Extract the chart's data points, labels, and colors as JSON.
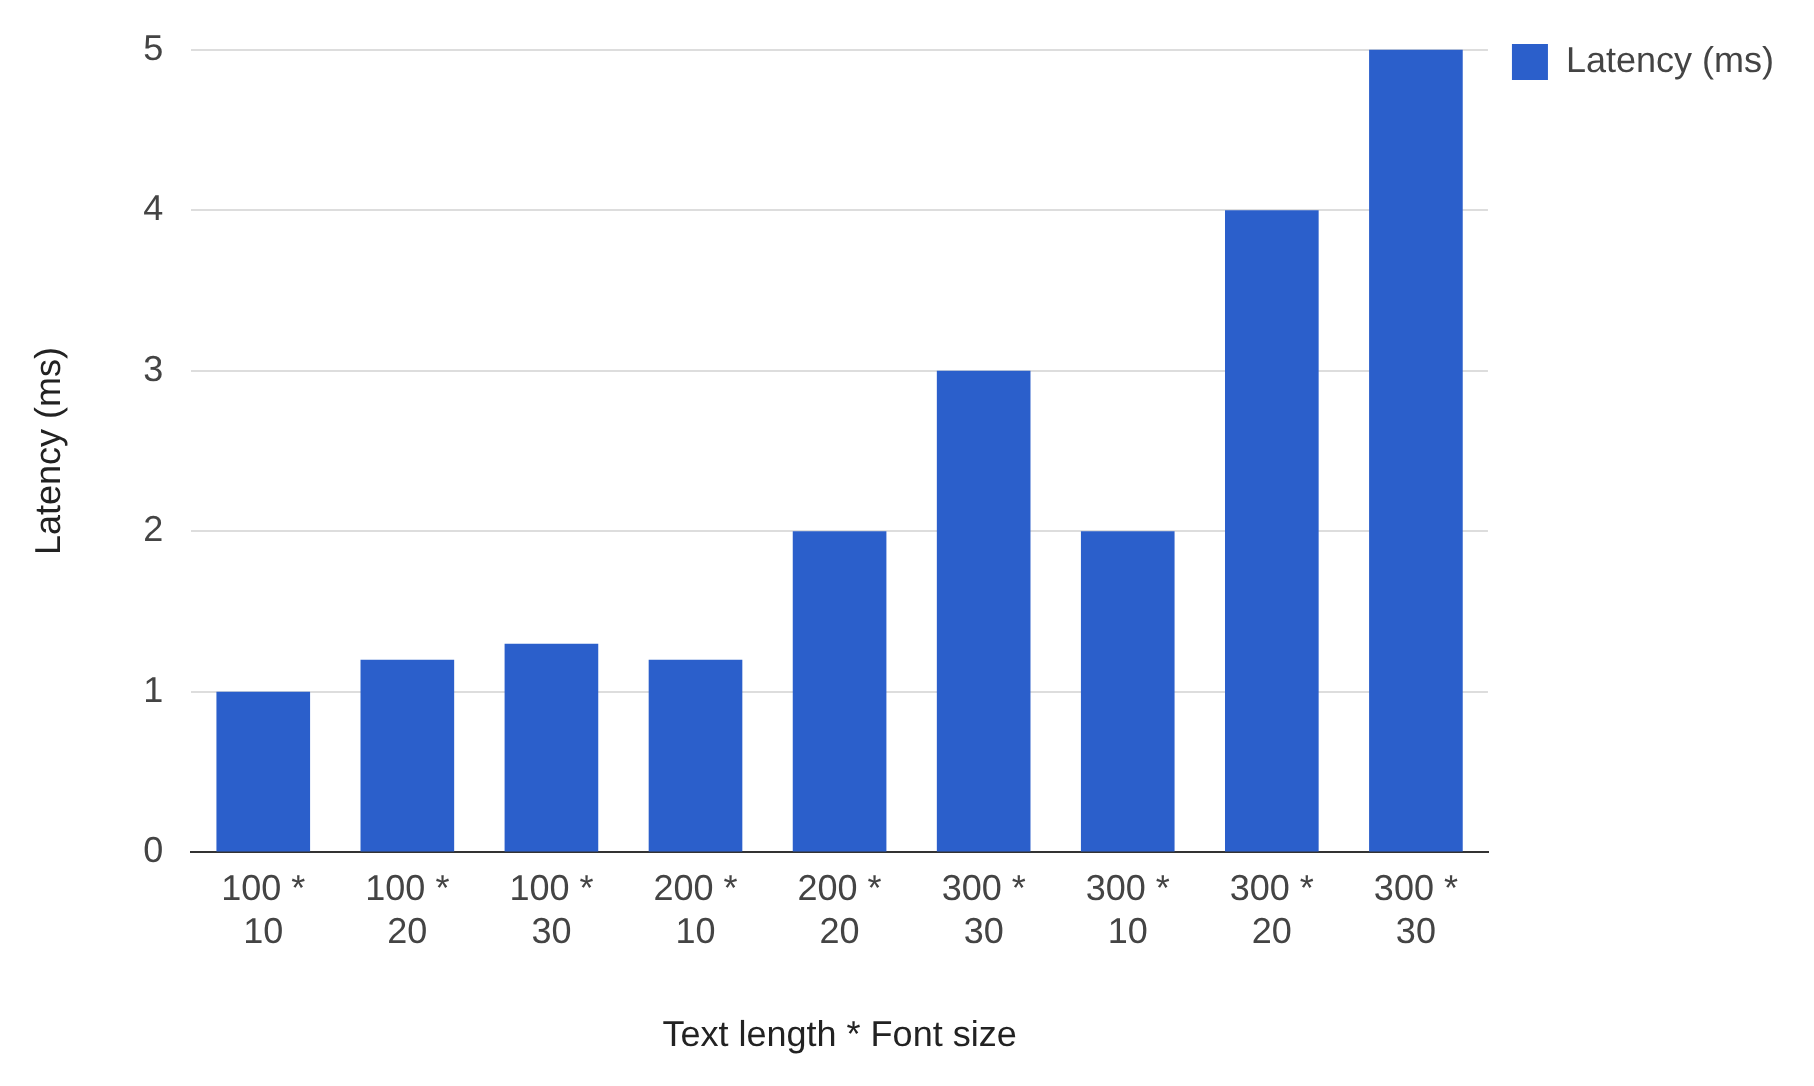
{
  "chart_data": {
    "type": "bar",
    "xlabel": "Text length * Font size",
    "ylabel": "Latency (ms)",
    "categories": [
      "100 * 10",
      "100 * 20",
      "100 * 30",
      "200 * 10",
      "200 * 20",
      "300 * 30",
      "300 * 10",
      "300 * 20",
      "300 * 30"
    ],
    "series": [
      {
        "name": "Latency (ms)",
        "color": "#2b5fcb",
        "values": [
          1,
          1.2,
          1.3,
          1.2,
          2,
          3,
          2,
          4,
          5
        ]
      }
    ],
    "ylim": [
      0,
      5
    ],
    "yticks": [
      0,
      1,
      2,
      3,
      4,
      5
    ],
    "grid": "y",
    "legend": "top right"
  }
}
